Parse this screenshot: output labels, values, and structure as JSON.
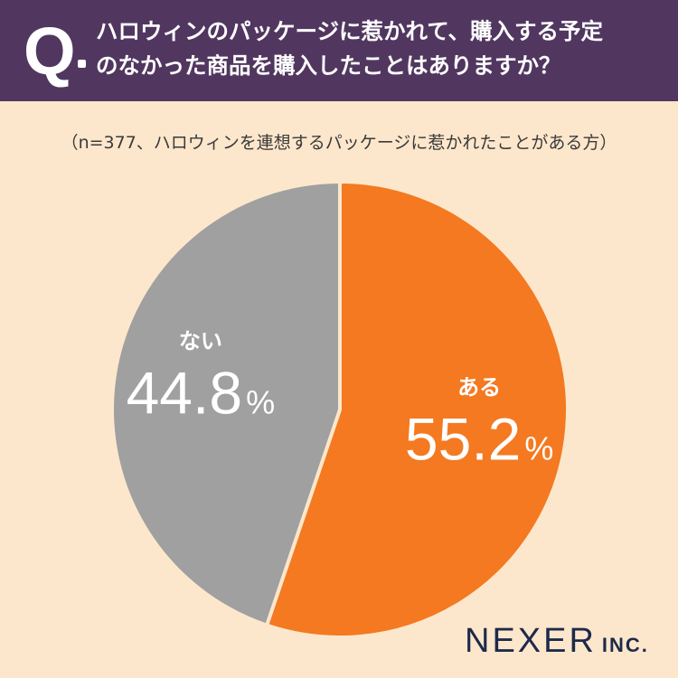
{
  "header": {
    "q_label": "Q",
    "question_line1": "ハロウィンのパッケージに惹かれて、購入する予定",
    "question_line2": "のなかった商品を購入したことはありますか？"
  },
  "note": "（n=377、ハロウィンを連想するパッケージに惹かれたことがある方）",
  "chart_data": {
    "type": "pie",
    "title": "",
    "categories": [
      "ある",
      "ない"
    ],
    "values": [
      55.2,
      44.8
    ],
    "value_labels": [
      "55.2",
      "44.8"
    ],
    "unit": "%",
    "colors": [
      "#f47920",
      "#a0a0a0"
    ]
  },
  "logo": {
    "main": "NEXER",
    "suffix": "INC."
  }
}
